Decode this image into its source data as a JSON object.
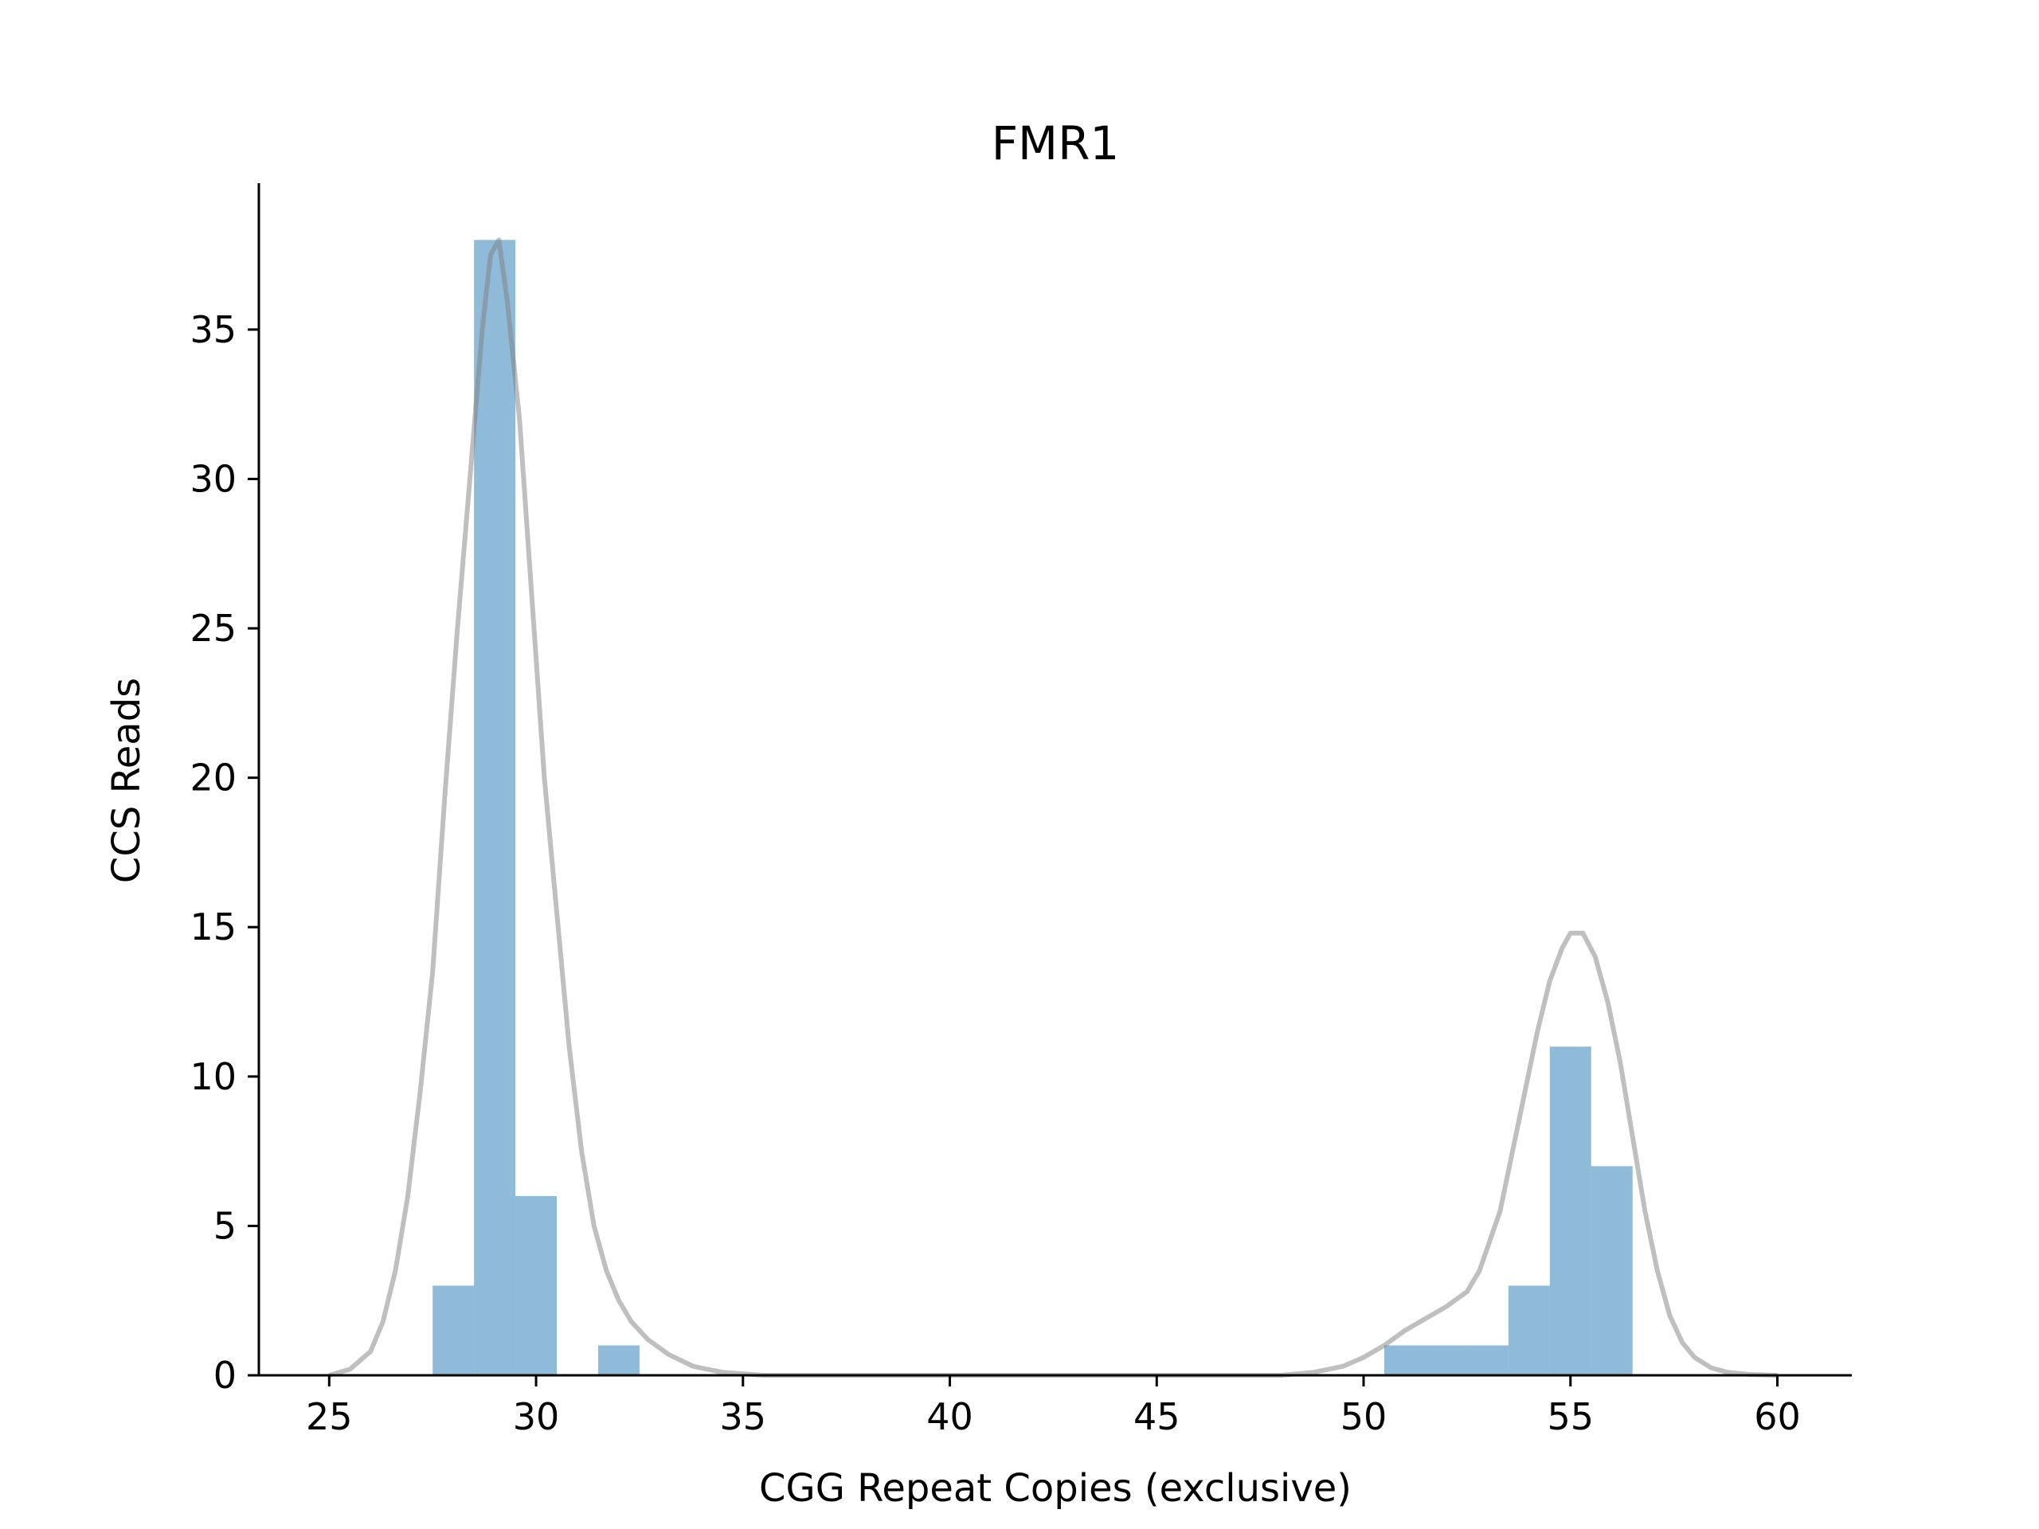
{
  "chart_data": {
    "type": "bar",
    "title": "FMR1",
    "xlabel": "CGG Repeat Copies (exclusive)",
    "ylabel": "CCS Reads",
    "xlim": [
      23.3,
      61.8
    ],
    "ylim": [
      0,
      39.9
    ],
    "xticks": [
      25,
      30,
      35,
      40,
      45,
      50,
      55,
      60
    ],
    "yticks": [
      0,
      5,
      10,
      15,
      20,
      25,
      30,
      35
    ],
    "grid": false,
    "histogram": {
      "bin_width": 1,
      "bins": [
        {
          "x": 28,
          "count": 3
        },
        {
          "x": 29,
          "count": 38
        },
        {
          "x": 30,
          "count": 6
        },
        {
          "x": 32,
          "count": 1
        },
        {
          "x": 51,
          "count": 1
        },
        {
          "x": 52,
          "count": 1
        },
        {
          "x": 53,
          "count": 1
        },
        {
          "x": 54,
          "count": 3
        },
        {
          "x": 55,
          "count": 11
        },
        {
          "x": 56,
          "count": 7
        }
      ],
      "color": "#1f77b4"
    },
    "density_curve": {
      "color": "#808080",
      "points": [
        [
          25.0,
          0.0
        ],
        [
          25.5,
          0.2
        ],
        [
          26.0,
          0.8
        ],
        [
          26.3,
          1.8
        ],
        [
          26.6,
          3.5
        ],
        [
          26.9,
          6.0
        ],
        [
          27.2,
          9.5
        ],
        [
          27.5,
          13.5
        ],
        [
          27.8,
          19.5
        ],
        [
          28.1,
          25.0
        ],
        [
          28.4,
          30.0
        ],
        [
          28.7,
          35.0
        ],
        [
          28.9,
          37.5
        ],
        [
          29.1,
          38.0
        ],
        [
          29.3,
          36.0
        ],
        [
          29.6,
          32.0
        ],
        [
          29.9,
          26.0
        ],
        [
          30.2,
          20.0
        ],
        [
          30.5,
          15.5
        ],
        [
          30.8,
          11.0
        ],
        [
          31.1,
          7.5
        ],
        [
          31.4,
          5.0
        ],
        [
          31.7,
          3.5
        ],
        [
          32.0,
          2.5
        ],
        [
          32.3,
          1.8
        ],
        [
          32.7,
          1.2
        ],
        [
          33.2,
          0.7
        ],
        [
          33.8,
          0.3
        ],
        [
          34.5,
          0.1
        ],
        [
          35.5,
          0.0
        ],
        [
          45.0,
          0.0
        ],
        [
          48.0,
          0.0
        ],
        [
          48.8,
          0.1
        ],
        [
          49.5,
          0.3
        ],
        [
          50.0,
          0.6
        ],
        [
          50.5,
          1.0
        ],
        [
          51.0,
          1.5
        ],
        [
          51.5,
          1.9
        ],
        [
          52.0,
          2.3
        ],
        [
          52.5,
          2.8
        ],
        [
          52.8,
          3.5
        ],
        [
          53.0,
          4.3
        ],
        [
          53.3,
          5.5
        ],
        [
          53.6,
          7.5
        ],
        [
          53.9,
          9.5
        ],
        [
          54.2,
          11.5
        ],
        [
          54.5,
          13.2
        ],
        [
          54.8,
          14.3
        ],
        [
          55.0,
          14.8
        ],
        [
          55.3,
          14.8
        ],
        [
          55.6,
          14.0
        ],
        [
          55.9,
          12.5
        ],
        [
          56.2,
          10.5
        ],
        [
          56.5,
          8.0
        ],
        [
          56.8,
          5.5
        ],
        [
          57.1,
          3.5
        ],
        [
          57.4,
          2.0
        ],
        [
          57.7,
          1.1
        ],
        [
          58.0,
          0.6
        ],
        [
          58.4,
          0.25
        ],
        [
          58.8,
          0.1
        ],
        [
          59.3,
          0.03
        ],
        [
          60.0,
          0.0
        ]
      ]
    }
  }
}
